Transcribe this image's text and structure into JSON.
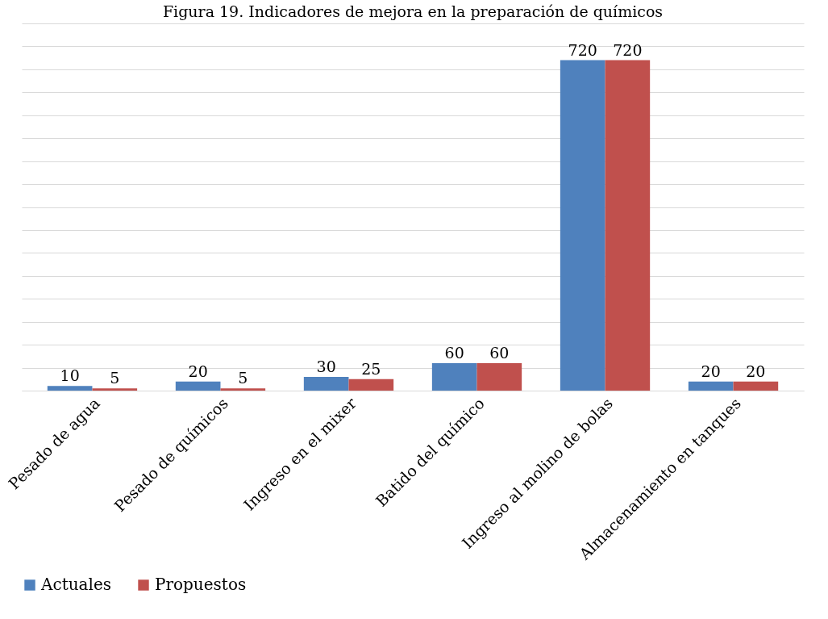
{
  "chart_data": {
    "type": "bar",
    "title": "Figura 19. Indicadores de mejora en la preparación de químicos",
    "categories": [
      "Pesado de agua",
      "Pesado de químicos",
      "Ingreso en el mixer",
      "Batido del químico",
      "Ingreso al molino de bolas",
      "Almacenamiento en tanques"
    ],
    "series": [
      {
        "name": "Actuales",
        "color": "#4f81bd",
        "values": [
          10,
          20,
          30,
          60,
          720,
          20
        ]
      },
      {
        "name": "Propuestos",
        "color": "#c0504d",
        "values": [
          5,
          5,
          25,
          60,
          720,
          20
        ]
      }
    ],
    "data_labels": true,
    "grid": "y",
    "tick_labels": "x",
    "legend": "bottom"
  }
}
